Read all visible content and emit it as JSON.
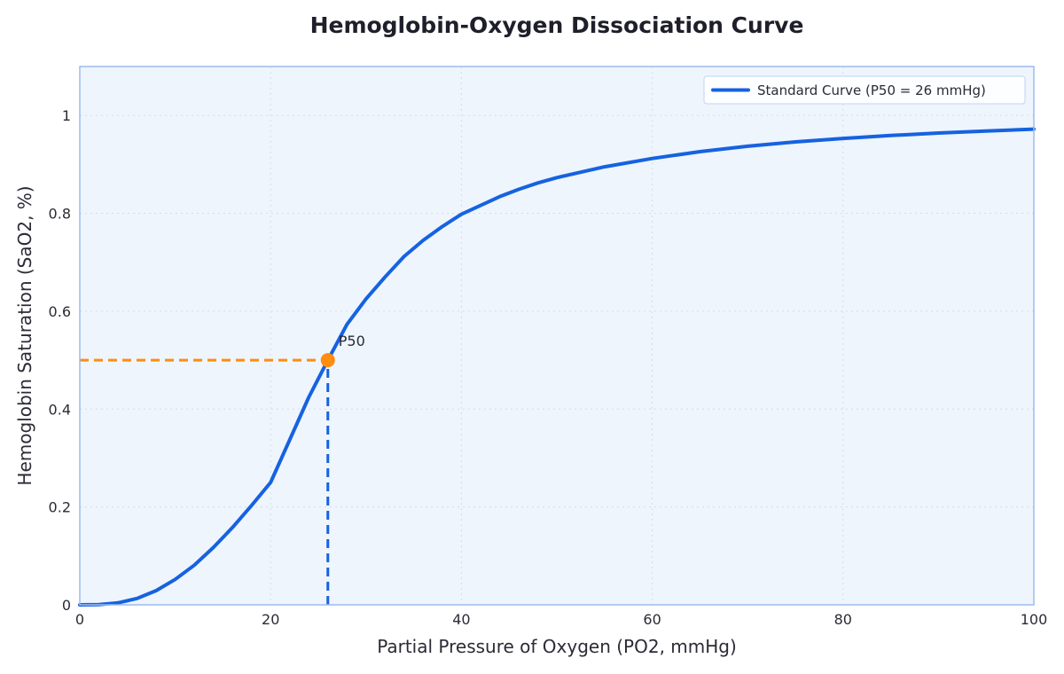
{
  "colors": {
    "curve": "#1662e0",
    "marker": "#ff8c0f",
    "plot_bg": "#eef5fd",
    "frame": "#9dbcee",
    "grid": "#d3dcea"
  },
  "chart_data": {
    "type": "line",
    "title": "Hemoglobin-Oxygen Dissociation Curve",
    "xlabel": "Partial Pressure of Oxygen (PO2, mmHg)",
    "ylabel": "Hemoglobin Saturation (SaO2, %)",
    "xlim": [
      0,
      100
    ],
    "ylim": [
      0,
      1.1
    ],
    "xticks": [
      0,
      20,
      40,
      60,
      80,
      100
    ],
    "xtick_labels": [
      "0",
      "20",
      "40",
      "60",
      "80",
      "100"
    ],
    "yticks": [
      0,
      0.2,
      0.4,
      0.6,
      0.8,
      1
    ],
    "ytick_labels": [
      "0",
      "0.2",
      "0.4",
      "0.6",
      "0.8",
      "1"
    ],
    "grid": true,
    "legend_position": "top-right",
    "series": [
      {
        "name": "Standard Curve (P50 = 26 mmHg)",
        "color": "#1662e0",
        "x": [
          0,
          2,
          4,
          6,
          8,
          10,
          12,
          14,
          16,
          18,
          20,
          22,
          24,
          26,
          28,
          30,
          32,
          34,
          36,
          38,
          40,
          42,
          44,
          46,
          48,
          50,
          55,
          60,
          65,
          70,
          75,
          80,
          85,
          90,
          95,
          100
        ],
        "y": [
          0,
          0.0005,
          0.004,
          0.013,
          0.029,
          0.052,
          0.081,
          0.117,
          0.158,
          0.203,
          0.25,
          0.337,
          0.424,
          0.5,
          0.573,
          0.625,
          0.67,
          0.712,
          0.745,
          0.773,
          0.798,
          0.816,
          0.834,
          0.849,
          0.862,
          0.873,
          0.895,
          0.912,
          0.926,
          0.937,
          0.946,
          0.953,
          0.959,
          0.964,
          0.968,
          0.972
        ]
      }
    ],
    "reference_lines": [
      {
        "orientation": "horizontal",
        "y": 0.5,
        "x_from": 0,
        "x_to": 26,
        "color": "#ff8c0f",
        "style": "dashed"
      },
      {
        "orientation": "vertical",
        "x": 26,
        "y_from": 0,
        "y_to": 0.5,
        "color": "#1662e0",
        "style": "dashed"
      }
    ],
    "annotations": [
      {
        "text": "P50",
        "x": 26,
        "y": 0.5,
        "color": "#ff8c0f"
      }
    ]
  }
}
